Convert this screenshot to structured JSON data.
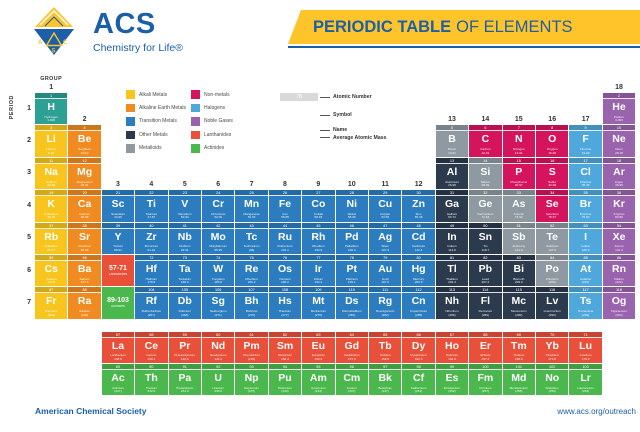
{
  "header": {
    "brand": "ACS",
    "tagline": "Chemistry for Life®",
    "title_bold": "PERIODIC TABLE",
    "title_rest": "OF ELEMENTS"
  },
  "axis": {
    "group_label": "GROUP",
    "period_label": "PERIOD",
    "groups": [
      [
        1,
        1
      ],
      [
        2,
        2
      ],
      [
        3,
        4
      ],
      [
        4,
        4
      ],
      [
        5,
        4
      ],
      [
        6,
        4
      ],
      [
        7,
        4
      ],
      [
        8,
        4
      ],
      [
        9,
        4
      ],
      [
        10,
        4
      ],
      [
        11,
        4
      ],
      [
        12,
        4
      ],
      [
        13,
        2
      ],
      [
        14,
        2
      ],
      [
        15,
        2
      ],
      [
        16,
        2
      ],
      [
        17,
        2
      ],
      [
        18,
        1
      ]
    ],
    "periods": [
      1,
      2,
      3,
      4,
      5,
      6,
      7
    ]
  },
  "legend": {
    "col1": [
      {
        "label": "Alkali Metals",
        "c": "ak"
      },
      {
        "label": "Alkaline Earth Metals",
        "c": "ae"
      },
      {
        "label": "Transition Metals",
        "c": "tm"
      },
      {
        "label": "Other Metals",
        "c": "om"
      },
      {
        "label": "Metalloids",
        "c": "md"
      }
    ],
    "col2": [
      {
        "label": "Non-metals",
        "c": "nm"
      },
      {
        "label": "Halogens",
        "c": "hal"
      },
      {
        "label": "Noble Gases",
        "c": "ng"
      },
      {
        "label": "Lanthanides",
        "c": "lan"
      },
      {
        "label": "Actinides",
        "c": "act"
      }
    ]
  },
  "key": {
    "number": "78",
    "symbol": "Pt",
    "name": "Platinum",
    "mass": "195.1",
    "labels": [
      "Atomic Number",
      "Symbol",
      "Name",
      "Average Atomic Mass"
    ]
  },
  "colors": {
    "h": "#2CA092",
    "ak": "#F7C51E",
    "ae": "#EF8B21",
    "tm": "#2B7DBF",
    "om": "#2C3A4D",
    "md": "#8E99A1",
    "nm": "#D5145E",
    "hal": "#4EA8DC",
    "ng": "#9A63AD",
    "lan": "#E85039",
    "act": "#4BB84D",
    "accent_blue": "#1B5FA8",
    "banner_yellow": "#FFC429"
  },
  "elements": [
    {
      "n": "1",
      "s": "H",
      "name": "Hydrogen",
      "m": "1.008",
      "c": "h",
      "col": 1,
      "row": 1
    },
    {
      "n": "2",
      "s": "He",
      "name": "Helium",
      "m": "4.003",
      "c": "ng",
      "col": 18,
      "row": 1
    },
    {
      "n": "3",
      "s": "Li",
      "name": "Lithium",
      "m": "6.94",
      "c": "ak",
      "col": 1,
      "row": 2
    },
    {
      "n": "4",
      "s": "Be",
      "name": "Beryllium",
      "m": "9.012",
      "c": "ae",
      "col": 2,
      "row": 2
    },
    {
      "n": "5",
      "s": "B",
      "name": "Boron",
      "m": "10.81",
      "c": "md",
      "col": 13,
      "row": 2
    },
    {
      "n": "6",
      "s": "C",
      "name": "Carbon",
      "m": "12.01",
      "c": "nm",
      "col": 14,
      "row": 2
    },
    {
      "n": "7",
      "s": "N",
      "name": "Nitrogen",
      "m": "14.01",
      "c": "nm",
      "col": 15,
      "row": 2
    },
    {
      "n": "8",
      "s": "O",
      "name": "Oxygen",
      "m": "16.00",
      "c": "nm",
      "col": 16,
      "row": 2
    },
    {
      "n": "9",
      "s": "F",
      "name": "Fluorine",
      "m": "19.00",
      "c": "hal",
      "col": 17,
      "row": 2
    },
    {
      "n": "10",
      "s": "Ne",
      "name": "Neon",
      "m": "20.18",
      "c": "ng",
      "col": 18,
      "row": 2
    },
    {
      "n": "11",
      "s": "Na",
      "name": "Sodium",
      "m": "22.99",
      "c": "ak",
      "col": 1,
      "row": 3
    },
    {
      "n": "12",
      "s": "Mg",
      "name": "Magnesium",
      "m": "24.31",
      "c": "ae",
      "col": 2,
      "row": 3
    },
    {
      "n": "13",
      "s": "Al",
      "name": "Aluminum",
      "m": "26.98",
      "c": "om",
      "col": 13,
      "row": 3
    },
    {
      "n": "14",
      "s": "Si",
      "name": "Silicon",
      "m": "28.09",
      "c": "md",
      "col": 14,
      "row": 3
    },
    {
      "n": "15",
      "s": "P",
      "name": "Phosphorus",
      "m": "30.97",
      "c": "nm",
      "col": 15,
      "row": 3
    },
    {
      "n": "16",
      "s": "S",
      "name": "Sulfur",
      "m": "32.06",
      "c": "nm",
      "col": 16,
      "row": 3
    },
    {
      "n": "17",
      "s": "Cl",
      "name": "Chlorine",
      "m": "35.45",
      "c": "hal",
      "col": 17,
      "row": 3
    },
    {
      "n": "18",
      "s": "Ar",
      "name": "Argon",
      "m": "39.95",
      "c": "ng",
      "col": 18,
      "row": 3
    },
    {
      "n": "19",
      "s": "K",
      "name": "Potassium",
      "m": "39.10",
      "c": "ak",
      "col": 1,
      "row": 4
    },
    {
      "n": "20",
      "s": "Ca",
      "name": "Calcium",
      "m": "40.08",
      "c": "ae",
      "col": 2,
      "row": 4
    },
    {
      "n": "21",
      "s": "Sc",
      "name": "Scandium",
      "m": "44.96",
      "c": "tm",
      "col": 3,
      "row": 4
    },
    {
      "n": "22",
      "s": "Ti",
      "name": "Titanium",
      "m": "47.87",
      "c": "tm",
      "col": 4,
      "row": 4
    },
    {
      "n": "23",
      "s": "V",
      "name": "Vanadium",
      "m": "50.94",
      "c": "tm",
      "col": 5,
      "row": 4
    },
    {
      "n": "24",
      "s": "Cr",
      "name": "Chromium",
      "m": "52.00",
      "c": "tm",
      "col": 6,
      "row": 4
    },
    {
      "n": "25",
      "s": "Mn",
      "name": "Manganese",
      "m": "54.94",
      "c": "tm",
      "col": 7,
      "row": 4
    },
    {
      "n": "26",
      "s": "Fe",
      "name": "Iron",
      "m": "55.85",
      "c": "tm",
      "col": 8,
      "row": 4
    },
    {
      "n": "27",
      "s": "Co",
      "name": "Cobalt",
      "m": "58.93",
      "c": "tm",
      "col": 9,
      "row": 4
    },
    {
      "n": "28",
      "s": "Ni",
      "name": "Nickel",
      "m": "58.69",
      "c": "tm",
      "col": 10,
      "row": 4
    },
    {
      "n": "29",
      "s": "Cu",
      "name": "Copper",
      "m": "63.55",
      "c": "tm",
      "col": 11,
      "row": 4
    },
    {
      "n": "30",
      "s": "Zn",
      "name": "Zinc",
      "m": "65.38",
      "c": "tm",
      "col": 12,
      "row": 4
    },
    {
      "n": "31",
      "s": "Ga",
      "name": "Gallium",
      "m": "69.72",
      "c": "om",
      "col": 13,
      "row": 4
    },
    {
      "n": "32",
      "s": "Ge",
      "name": "Germanium",
      "m": "72.63",
      "c": "md",
      "col": 14,
      "row": 4
    },
    {
      "n": "33",
      "s": "As",
      "name": "Arsenic",
      "m": "74.92",
      "c": "md",
      "col": 15,
      "row": 4
    },
    {
      "n": "34",
      "s": "Se",
      "name": "Selenium",
      "m": "78.97",
      "c": "nm",
      "col": 16,
      "row": 4
    },
    {
      "n": "35",
      "s": "Br",
      "name": "Bromine",
      "m": "79.90",
      "c": "hal",
      "col": 17,
      "row": 4
    },
    {
      "n": "36",
      "s": "Kr",
      "name": "Krypton",
      "m": "83.80",
      "c": "ng",
      "col": 18,
      "row": 4
    },
    {
      "n": "37",
      "s": "Rb",
      "name": "Rubidium",
      "m": "85.47",
      "c": "ak",
      "col": 1,
      "row": 5
    },
    {
      "n": "38",
      "s": "Sr",
      "name": "Strontium",
      "m": "87.62",
      "c": "ae",
      "col": 2,
      "row": 5
    },
    {
      "n": "39",
      "s": "Y",
      "name": "Yttrium",
      "m": "88.91",
      "c": "tm",
      "col": 3,
      "row": 5
    },
    {
      "n": "40",
      "s": "Zr",
      "name": "Zirconium",
      "m": "91.22",
      "c": "tm",
      "col": 4,
      "row": 5
    },
    {
      "n": "41",
      "s": "Nb",
      "name": "Niobium",
      "m": "92.91",
      "c": "tm",
      "col": 5,
      "row": 5
    },
    {
      "n": "42",
      "s": "Mo",
      "name": "Molybdenum",
      "m": "95.95",
      "c": "tm",
      "col": 6,
      "row": 5
    },
    {
      "n": "43",
      "s": "Tc",
      "name": "Technetium",
      "m": "(98)",
      "c": "tm",
      "col": 7,
      "row": 5
    },
    {
      "n": "44",
      "s": "Ru",
      "name": "Ruthenium",
      "m": "101.1",
      "c": "tm",
      "col": 8,
      "row": 5
    },
    {
      "n": "45",
      "s": "Rh",
      "name": "Rhodium",
      "m": "102.9",
      "c": "tm",
      "col": 9,
      "row": 5
    },
    {
      "n": "46",
      "s": "Pd",
      "name": "Palladium",
      "m": "106.4",
      "c": "tm",
      "col": 10,
      "row": 5
    },
    {
      "n": "47",
      "s": "Ag",
      "name": "Silver",
      "m": "107.9",
      "c": "tm",
      "col": 11,
      "row": 5
    },
    {
      "n": "48",
      "s": "Cd",
      "name": "Cadmium",
      "m": "112.4",
      "c": "tm",
      "col": 12,
      "row": 5
    },
    {
      "n": "49",
      "s": "In",
      "name": "Indium",
      "m": "114.8",
      "c": "om",
      "col": 13,
      "row": 5
    },
    {
      "n": "50",
      "s": "Sn",
      "name": "Tin",
      "m": "118.7",
      "c": "om",
      "col": 14,
      "row": 5
    },
    {
      "n": "51",
      "s": "Sb",
      "name": "Antimony",
      "m": "121.8",
      "c": "md",
      "col": 15,
      "row": 5
    },
    {
      "n": "52",
      "s": "Te",
      "name": "Tellurium",
      "m": "127.6",
      "c": "md",
      "col": 16,
      "row": 5
    },
    {
      "n": "53",
      "s": "I",
      "name": "Iodine",
      "m": "126.9",
      "c": "hal",
      "col": 17,
      "row": 5
    },
    {
      "n": "54",
      "s": "Xe",
      "name": "Xenon",
      "m": "131.3",
      "c": "ng",
      "col": 18,
      "row": 5
    },
    {
      "n": "55",
      "s": "Cs",
      "name": "Cesium",
      "m": "132.9",
      "c": "ak",
      "col": 1,
      "row": 6
    },
    {
      "n": "56",
      "s": "Ba",
      "name": "Barium",
      "m": "137.3",
      "c": "ae",
      "col": 2,
      "row": 6
    },
    {
      "n": "57-71",
      "s": "",
      "name": "Lanthanides",
      "m": "",
      "c": "lan",
      "col": 3,
      "row": 6,
      "ph": true
    },
    {
      "n": "72",
      "s": "Hf",
      "name": "Hafnium",
      "m": "178.5",
      "c": "tm",
      "col": 4,
      "row": 6
    },
    {
      "n": "73",
      "s": "Ta",
      "name": "Tantalum",
      "m": "180.9",
      "c": "tm",
      "col": 5,
      "row": 6
    },
    {
      "n": "74",
      "s": "W",
      "name": "Tungsten",
      "m": "183.8",
      "c": "tm",
      "col": 6,
      "row": 6
    },
    {
      "n": "75",
      "s": "Re",
      "name": "Rhenium",
      "m": "186.2",
      "c": "tm",
      "col": 7,
      "row": 6
    },
    {
      "n": "76",
      "s": "Os",
      "name": "Osmium",
      "m": "190.2",
      "c": "tm",
      "col": 8,
      "row": 6
    },
    {
      "n": "77",
      "s": "Ir",
      "name": "Iridium",
      "m": "192.2",
      "c": "tm",
      "col": 9,
      "row": 6
    },
    {
      "n": "78",
      "s": "Pt",
      "name": "Platinum",
      "m": "195.1",
      "c": "tm",
      "col": 10,
      "row": 6
    },
    {
      "n": "79",
      "s": "Au",
      "name": "Gold",
      "m": "197.0",
      "c": "tm",
      "col": 11,
      "row": 6
    },
    {
      "n": "80",
      "s": "Hg",
      "name": "Mercury",
      "m": "200.6",
      "c": "tm",
      "col": 12,
      "row": 6
    },
    {
      "n": "81",
      "s": "Tl",
      "name": "Thallium",
      "m": "204.4",
      "c": "om",
      "col": 13,
      "row": 6
    },
    {
      "n": "82",
      "s": "Pb",
      "name": "Lead",
      "m": "207.2",
      "c": "om",
      "col": 14,
      "row": 6
    },
    {
      "n": "83",
      "s": "Bi",
      "name": "Bismuth",
      "m": "209.0",
      "c": "om",
      "col": 15,
      "row": 6
    },
    {
      "n": "84",
      "s": "Po",
      "name": "Polonium",
      "m": "(209)",
      "c": "md",
      "col": 16,
      "row": 6
    },
    {
      "n": "85",
      "s": "At",
      "name": "Astatine",
      "m": "(210)",
      "c": "hal",
      "col": 17,
      "row": 6
    },
    {
      "n": "86",
      "s": "Rn",
      "name": "Radon",
      "m": "(222)",
      "c": "ng",
      "col": 18,
      "row": 6
    },
    {
      "n": "87",
      "s": "Fr",
      "name": "Francium",
      "m": "(223)",
      "c": "ak",
      "col": 1,
      "row": 7
    },
    {
      "n": "88",
      "s": "Ra",
      "name": "Radium",
      "m": "(226)",
      "c": "ae",
      "col": 2,
      "row": 7
    },
    {
      "n": "89-103",
      "s": "",
      "name": "Actinides",
      "m": "",
      "c": "act",
      "col": 3,
      "row": 7,
      "ph": true
    },
    {
      "n": "104",
      "s": "Rf",
      "name": "Rutherfordium",
      "m": "(267)",
      "c": "tm",
      "col": 4,
      "row": 7
    },
    {
      "n": "105",
      "s": "Db",
      "name": "Dubnium",
      "m": "(268)",
      "c": "tm",
      "col": 5,
      "row": 7
    },
    {
      "n": "106",
      "s": "Sg",
      "name": "Seaborgium",
      "m": "(271)",
      "c": "tm",
      "col": 6,
      "row": 7
    },
    {
      "n": "107",
      "s": "Bh",
      "name": "Bohrium",
      "m": "(270)",
      "c": "tm",
      "col": 7,
      "row": 7
    },
    {
      "n": "108",
      "s": "Hs",
      "name": "Hassium",
      "m": "(277)",
      "c": "tm",
      "col": 8,
      "row": 7
    },
    {
      "n": "109",
      "s": "Mt",
      "name": "Meitnerium",
      "m": "(276)",
      "c": "tm",
      "col": 9,
      "row": 7
    },
    {
      "n": "110",
      "s": "Ds",
      "name": "Darmstadtium",
      "m": "(281)",
      "c": "tm",
      "col": 10,
      "row": 7
    },
    {
      "n": "111",
      "s": "Rg",
      "name": "Roentgenium",
      "m": "(282)",
      "c": "tm",
      "col": 11,
      "row": 7
    },
    {
      "n": "112",
      "s": "Cn",
      "name": "Copernicium",
      "m": "(285)",
      "c": "tm",
      "col": 12,
      "row": 7
    },
    {
      "n": "113",
      "s": "Nh",
      "name": "Nihonium",
      "m": "(286)",
      "c": "om",
      "col": 13,
      "row": 7
    },
    {
      "n": "114",
      "s": "Fl",
      "name": "Flerovium",
      "m": "(289)",
      "c": "om",
      "col": 14,
      "row": 7
    },
    {
      "n": "115",
      "s": "Mc",
      "name": "Moscovium",
      "m": "(290)",
      "c": "om",
      "col": 15,
      "row": 7
    },
    {
      "n": "116",
      "s": "Lv",
      "name": "Livermorium",
      "m": "(293)",
      "c": "om",
      "col": 16,
      "row": 7
    },
    {
      "n": "117",
      "s": "Ts",
      "name": "Tennessine",
      "m": "(294)",
      "c": "hal",
      "col": 17,
      "row": 7
    },
    {
      "n": "118",
      "s": "Og",
      "name": "Oganesson",
      "m": "(294)",
      "c": "ng",
      "col": 18,
      "row": 7
    },
    {
      "n": "57",
      "s": "La",
      "name": "Lanthanum",
      "m": "138.9",
      "c": "lan",
      "col": 3,
      "row": 8
    },
    {
      "n": "58",
      "s": "Ce",
      "name": "Cerium",
      "m": "140.1",
      "c": "lan",
      "col": 4,
      "row": 8
    },
    {
      "n": "59",
      "s": "Pr",
      "name": "Praseodymium",
      "m": "140.9",
      "c": "lan",
      "col": 5,
      "row": 8
    },
    {
      "n": "60",
      "s": "Nd",
      "name": "Neodymium",
      "m": "144.2",
      "c": "lan",
      "col": 6,
      "row": 8
    },
    {
      "n": "61",
      "s": "Pm",
      "name": "Promethium",
      "m": "(145)",
      "c": "lan",
      "col": 7,
      "row": 8
    },
    {
      "n": "62",
      "s": "Sm",
      "name": "Samarium",
      "m": "150.4",
      "c": "lan",
      "col": 8,
      "row": 8
    },
    {
      "n": "63",
      "s": "Eu",
      "name": "Europium",
      "m": "152.0",
      "c": "lan",
      "col": 9,
      "row": 8
    },
    {
      "n": "64",
      "s": "Gd",
      "name": "Gadolinium",
      "m": "157.3",
      "c": "lan",
      "col": 10,
      "row": 8
    },
    {
      "n": "65",
      "s": "Tb",
      "name": "Terbium",
      "m": "158.9",
      "c": "lan",
      "col": 11,
      "row": 8
    },
    {
      "n": "66",
      "s": "Dy",
      "name": "Dysprosium",
      "m": "162.5",
      "c": "lan",
      "col": 12,
      "row": 8
    },
    {
      "n": "67",
      "s": "Ho",
      "name": "Holmium",
      "m": "164.9",
      "c": "lan",
      "col": 13,
      "row": 8
    },
    {
      "n": "68",
      "s": "Er",
      "name": "Erbium",
      "m": "167.3",
      "c": "lan",
      "col": 14,
      "row": 8
    },
    {
      "n": "69",
      "s": "Tm",
      "name": "Thulium",
      "m": "168.9",
      "c": "lan",
      "col": 15,
      "row": 8
    },
    {
      "n": "70",
      "s": "Yb",
      "name": "Ytterbium",
      "m": "173.0",
      "c": "lan",
      "col": 16,
      "row": 8
    },
    {
      "n": "71",
      "s": "Lu",
      "name": "Lutetium",
      "m": "175.0",
      "c": "lan",
      "col": 17,
      "row": 8
    },
    {
      "n": "89",
      "s": "Ac",
      "name": "Actinium",
      "m": "(227)",
      "c": "act",
      "col": 3,
      "row": 9
    },
    {
      "n": "90",
      "s": "Th",
      "name": "Thorium",
      "m": "232.0",
      "c": "act",
      "col": 4,
      "row": 9
    },
    {
      "n": "91",
      "s": "Pa",
      "name": "Protactinium",
      "m": "231.0",
      "c": "act",
      "col": 5,
      "row": 9
    },
    {
      "n": "92",
      "s": "U",
      "name": "Uranium",
      "m": "238.0",
      "c": "act",
      "col": 6,
      "row": 9
    },
    {
      "n": "93",
      "s": "Np",
      "name": "Neptunium",
      "m": "(237)",
      "c": "act",
      "col": 7,
      "row": 9
    },
    {
      "n": "94",
      "s": "Pu",
      "name": "Plutonium",
      "m": "(244)",
      "c": "act",
      "col": 8,
      "row": 9
    },
    {
      "n": "95",
      "s": "Am",
      "name": "Americium",
      "m": "(243)",
      "c": "act",
      "col": 9,
      "row": 9
    },
    {
      "n": "96",
      "s": "Cm",
      "name": "Curium",
      "m": "(247)",
      "c": "act",
      "col": 10,
      "row": 9
    },
    {
      "n": "97",
      "s": "Bk",
      "name": "Berkelium",
      "m": "(247)",
      "c": "act",
      "col": 11,
      "row": 9
    },
    {
      "n": "98",
      "s": "Cf",
      "name": "Californium",
      "m": "(251)",
      "c": "act",
      "col": 12,
      "row": 9
    },
    {
      "n": "99",
      "s": "Es",
      "name": "Einsteinium",
      "m": "(252)",
      "c": "act",
      "col": 13,
      "row": 9
    },
    {
      "n": "100",
      "s": "Fm",
      "name": "Fermium",
      "m": "(257)",
      "c": "act",
      "col": 14,
      "row": 9
    },
    {
      "n": "101",
      "s": "Md",
      "name": "Mendelevium",
      "m": "(258)",
      "c": "act",
      "col": 15,
      "row": 9
    },
    {
      "n": "102",
      "s": "No",
      "name": "Nobelium",
      "m": "(259)",
      "c": "act",
      "col": 16,
      "row": 9
    },
    {
      "n": "103",
      "s": "Lr",
      "name": "Lawrencium",
      "m": "(262)",
      "c": "act",
      "col": 17,
      "row": 9
    }
  ],
  "footer": {
    "left": "American Chemical Society",
    "right": "www.acs.org/outreach"
  }
}
